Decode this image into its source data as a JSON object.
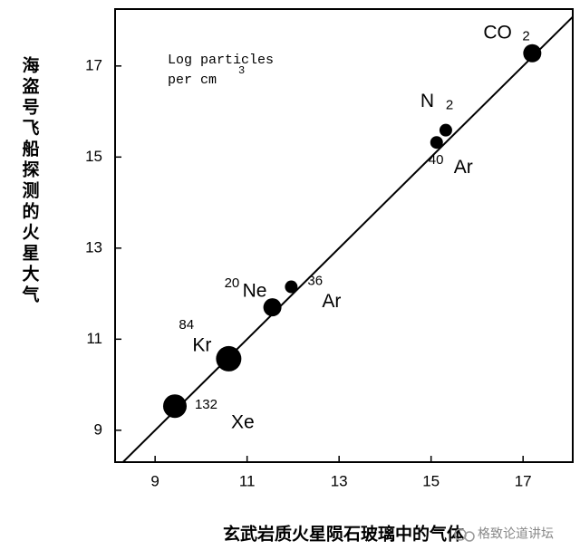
{
  "chart_data": {
    "type": "scatter",
    "ylabel": "海盗号飞船探测的火星大气",
    "xlabel": "玄武岩质火星陨石玻璃中的气体",
    "annotation": {
      "line1": "Log particles",
      "line2": "per cm",
      "sup": "3"
    },
    "watermark": "格致论道讲坛",
    "xlim": [
      8.13,
      18.08
    ],
    "ylim": [
      8.3,
      18.25
    ],
    "xticks": [
      9,
      11,
      13,
      15,
      17
    ],
    "yticks": [
      9,
      11,
      13,
      15,
      17
    ],
    "color": "#000000",
    "x": [
      9.43,
      10.6,
      11.55,
      11.96,
      15.12,
      15.32,
      17.2
    ],
    "values": [
      9.53,
      10.57,
      11.7,
      12.15,
      15.32,
      15.59,
      17.28
    ],
    "sizes": [
      13,
      14,
      10,
      7,
      7,
      7,
      10
    ],
    "point_labels": [
      {
        "pre": "132",
        "main": "Xe"
      },
      {
        "pre": "84",
        "main": "Kr"
      },
      {
        "pre": "20",
        "main": "Ne"
      },
      {
        "pre": "36",
        "main": "Ar"
      },
      {
        "pre": "40",
        "main": "Ar"
      },
      {
        "main": "N",
        "post": "2"
      },
      {
        "main": "CO",
        "post": "2"
      }
    ]
  }
}
